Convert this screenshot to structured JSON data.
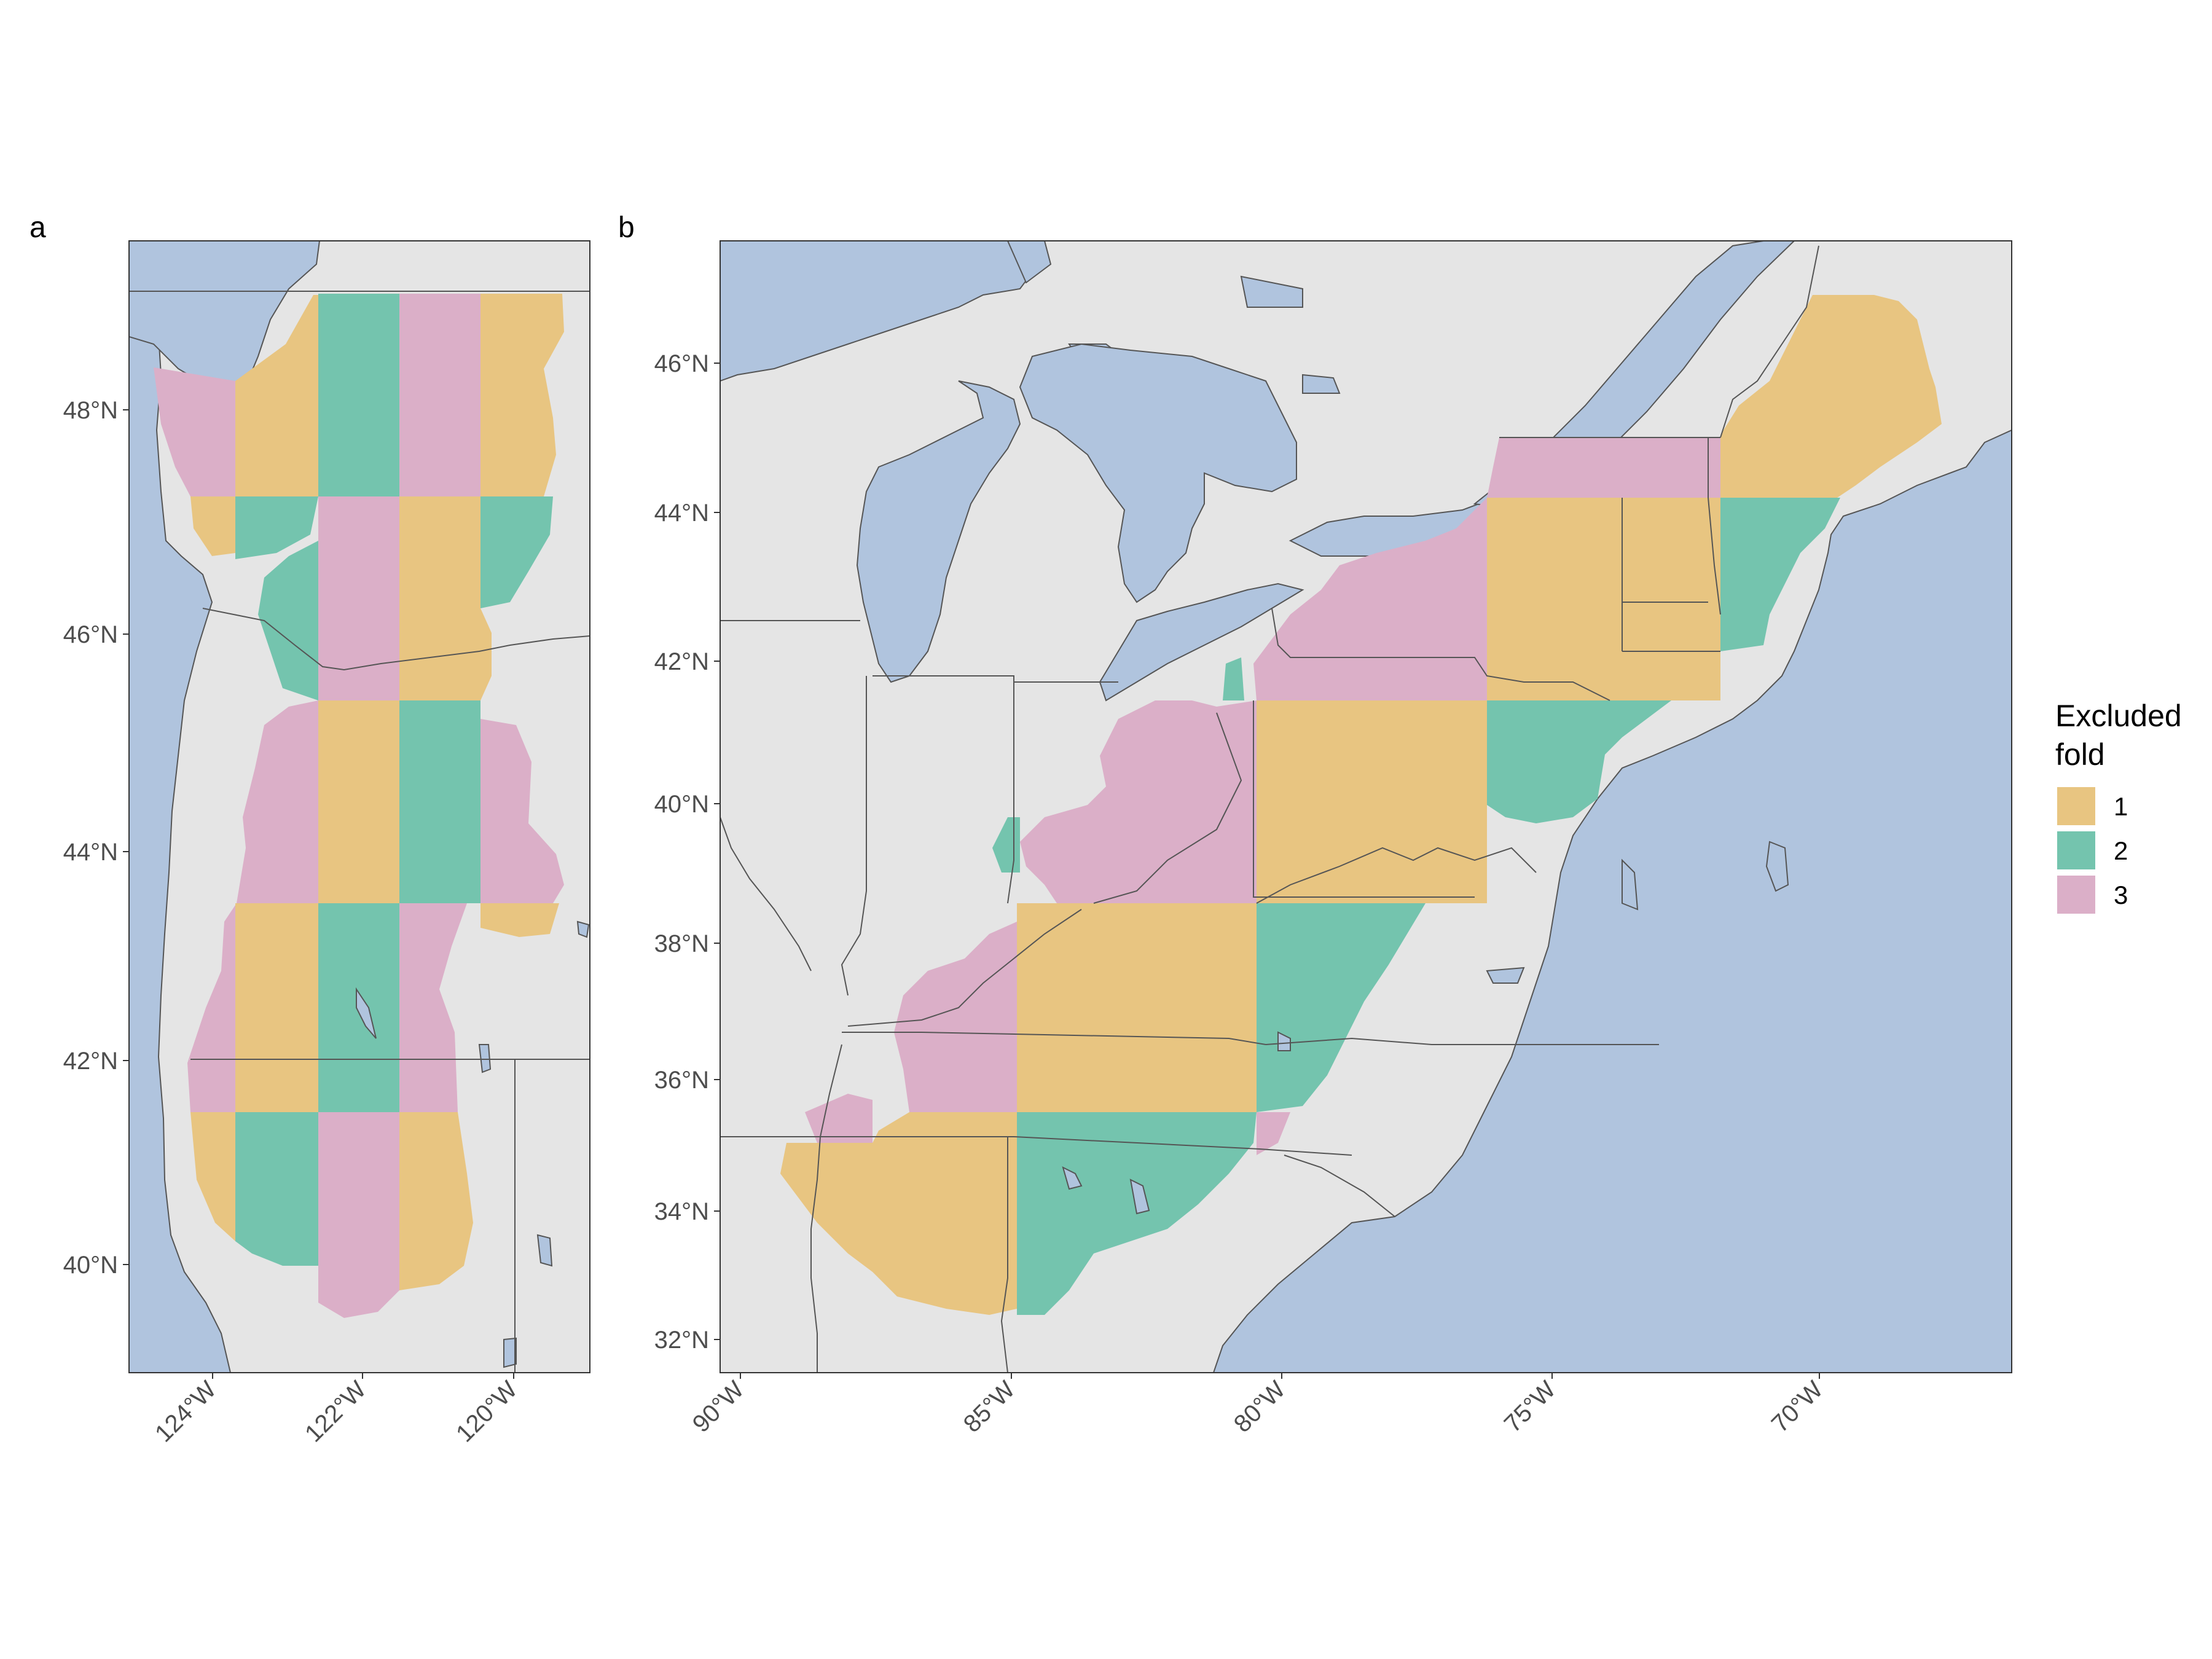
{
  "panels": [
    {
      "label": "a",
      "lat_ticks": [
        "48°N",
        "46°N",
        "44°N",
        "42°N",
        "40°N"
      ],
      "lon_ticks": [
        "124°W",
        "122°W",
        "120°W"
      ]
    },
    {
      "label": "b",
      "lat_ticks": [
        "46°N",
        "44°N",
        "42°N",
        "40°N",
        "38°N",
        "36°N",
        "34°N",
        "32°N"
      ],
      "lon_ticks": [
        "90°W",
        "85°W",
        "80°W",
        "75°W",
        "70°W"
      ]
    }
  ],
  "legend": {
    "title_line1": "Excluded",
    "title_line2": "fold",
    "items": [
      {
        "label": "1",
        "color": "#e8c581"
      },
      {
        "label": "2",
        "color": "#74c4ae"
      },
      {
        "label": "3",
        "color": "#dbafc8"
      }
    ]
  },
  "colors": {
    "land": "#e5e5e5",
    "water": "#b0c4de",
    "fold_1": "#e8c581",
    "fold_2": "#74c4ae",
    "fold_3": "#dbafc8"
  }
}
